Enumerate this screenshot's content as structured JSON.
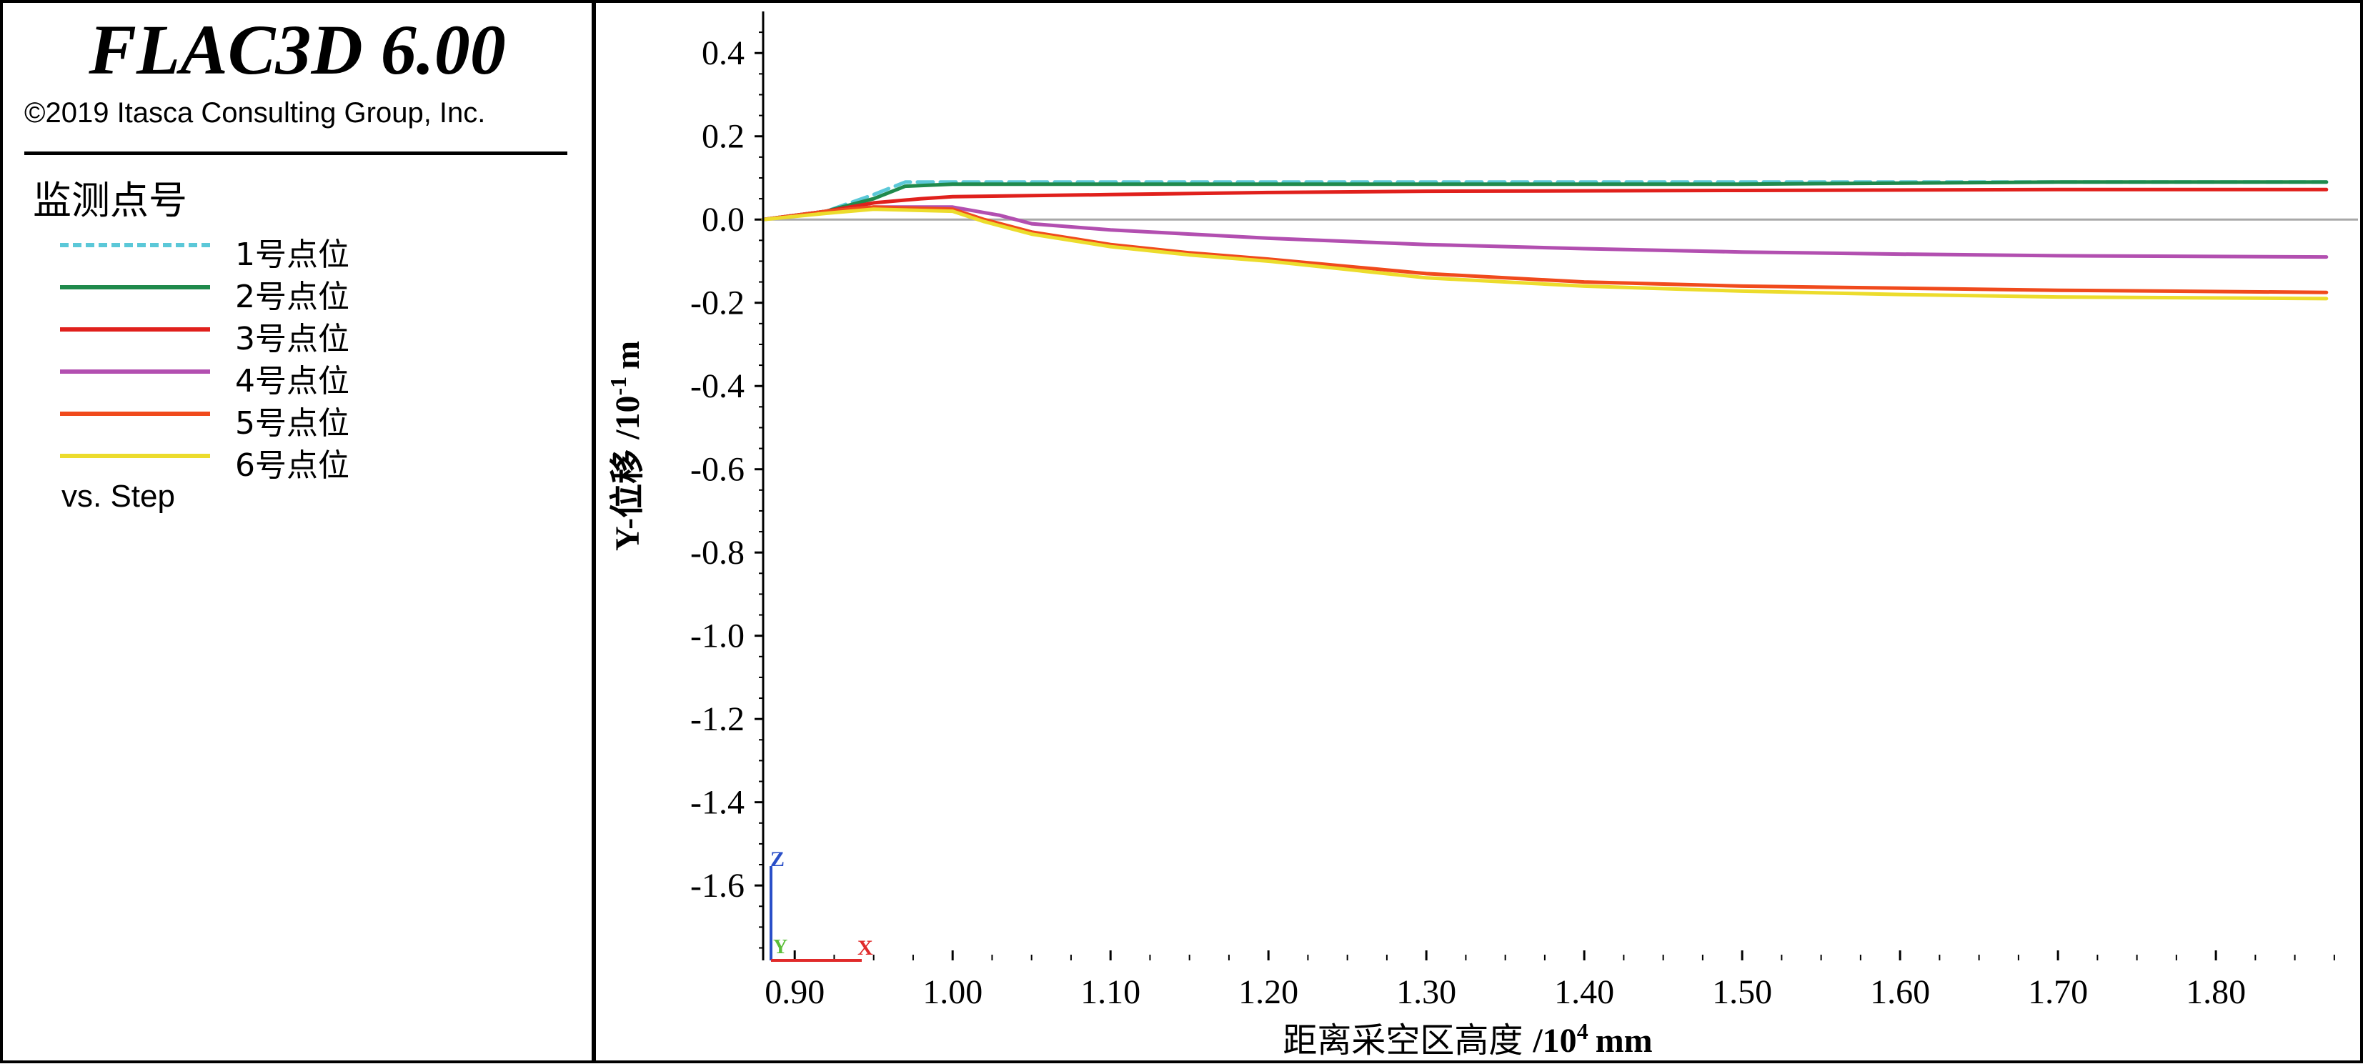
{
  "header": {
    "app_title": "FLAC3D 6.00",
    "copyright": "©2019 Itasca Consulting Group, Inc."
  },
  "legend": {
    "title": "监测点号",
    "items": [
      {
        "label": "1号点位",
        "color": "#5bc8d8",
        "style": "dashed"
      },
      {
        "label": "2号点位",
        "color": "#1f8a4c",
        "style": "solid"
      },
      {
        "label": "3号点位",
        "color": "#e0201c",
        "style": "solid"
      },
      {
        "label": "4号点位",
        "color": "#b24fb0",
        "style": "solid"
      },
      {
        "label": "5号点位",
        "color": "#f04a1c",
        "style": "solid"
      },
      {
        "label": "6号点位",
        "color": "#ecdc2c",
        "style": "solid"
      }
    ],
    "footer": "vs. Step"
  },
  "axes_triad": {
    "z": "Z",
    "y": "Y",
    "x": "X"
  },
  "chart_data": {
    "type": "line",
    "title": "",
    "xlabel": "距离采空区高度",
    "xlabel_unit_base": "/10",
    "xlabel_unit_exp": "4",
    "xlabel_unit_tail": "mm",
    "ylabel": "Y-位移",
    "ylabel_unit_base": "/10",
    "ylabel_unit_exp": "-1",
    "ylabel_unit_tail": "m",
    "xlim": [
      0.88,
      1.89
    ],
    "ylim": [
      -1.78,
      0.5
    ],
    "x_ticks": [
      "0.90",
      "1.00",
      "1.10",
      "1.20",
      "1.30",
      "1.40",
      "1.50",
      "1.60",
      "1.70",
      "1.80"
    ],
    "y_ticks": [
      "0.4",
      "0.2",
      "0.0",
      "-0.2",
      "-0.4",
      "-0.6",
      "-0.8",
      "-1.0",
      "-1.2",
      "-1.4",
      "-1.6"
    ],
    "zero_line": true,
    "grid": false,
    "series": [
      {
        "name": "1号点位",
        "color": "#5bc8d8",
        "dash": true,
        "x": [
          0.88,
          0.92,
          0.95,
          0.97,
          1.0,
          1.1,
          1.3,
          1.5,
          1.7,
          1.87
        ],
        "y": [
          0.0,
          0.02,
          0.06,
          0.09,
          0.09,
          0.09,
          0.09,
          0.09,
          0.09,
          0.09
        ]
      },
      {
        "name": "2号点位",
        "color": "#1f8a4c",
        "dash": false,
        "x": [
          0.88,
          0.92,
          0.95,
          0.97,
          1.0,
          1.1,
          1.3,
          1.5,
          1.7,
          1.87
        ],
        "y": [
          0.0,
          0.02,
          0.05,
          0.08,
          0.085,
          0.085,
          0.085,
          0.085,
          0.09,
          0.09
        ]
      },
      {
        "name": "3号点位",
        "color": "#e0201c",
        "dash": false,
        "x": [
          0.88,
          0.92,
          0.95,
          0.98,
          1.0,
          1.1,
          1.2,
          1.3,
          1.5,
          1.7,
          1.87
        ],
        "y": [
          0.0,
          0.02,
          0.04,
          0.05,
          0.055,
          0.06,
          0.065,
          0.068,
          0.07,
          0.072,
          0.072
        ]
      },
      {
        "name": "4号点位",
        "color": "#b24fb0",
        "dash": false,
        "x": [
          0.88,
          0.92,
          0.95,
          1.0,
          1.03,
          1.05,
          1.1,
          1.2,
          1.3,
          1.4,
          1.5,
          1.6,
          1.7,
          1.87
        ],
        "y": [
          0.0,
          0.02,
          0.03,
          0.03,
          0.01,
          -0.01,
          -0.025,
          -0.045,
          -0.06,
          -0.07,
          -0.078,
          -0.083,
          -0.087,
          -0.09
        ]
      },
      {
        "name": "5号点位",
        "color": "#f04a1c",
        "dash": false,
        "x": [
          0.88,
          0.92,
          0.95,
          1.0,
          1.02,
          1.05,
          1.1,
          1.15,
          1.2,
          1.3,
          1.4,
          1.5,
          1.6,
          1.7,
          1.87
        ],
        "y": [
          0.0,
          0.02,
          0.03,
          0.025,
          0.0,
          -0.03,
          -0.06,
          -0.08,
          -0.095,
          -0.13,
          -0.15,
          -0.16,
          -0.165,
          -0.17,
          -0.175
        ]
      },
      {
        "name": "6号点位",
        "color": "#ecdc2c",
        "dash": false,
        "x": [
          0.88,
          0.92,
          0.95,
          1.0,
          1.02,
          1.05,
          1.1,
          1.15,
          1.2,
          1.3,
          1.4,
          1.5,
          1.6,
          1.7,
          1.87
        ],
        "y": [
          0.0,
          0.015,
          0.025,
          0.02,
          -0.005,
          -0.035,
          -0.065,
          -0.085,
          -0.1,
          -0.14,
          -0.16,
          -0.172,
          -0.18,
          -0.186,
          -0.19
        ]
      }
    ]
  }
}
